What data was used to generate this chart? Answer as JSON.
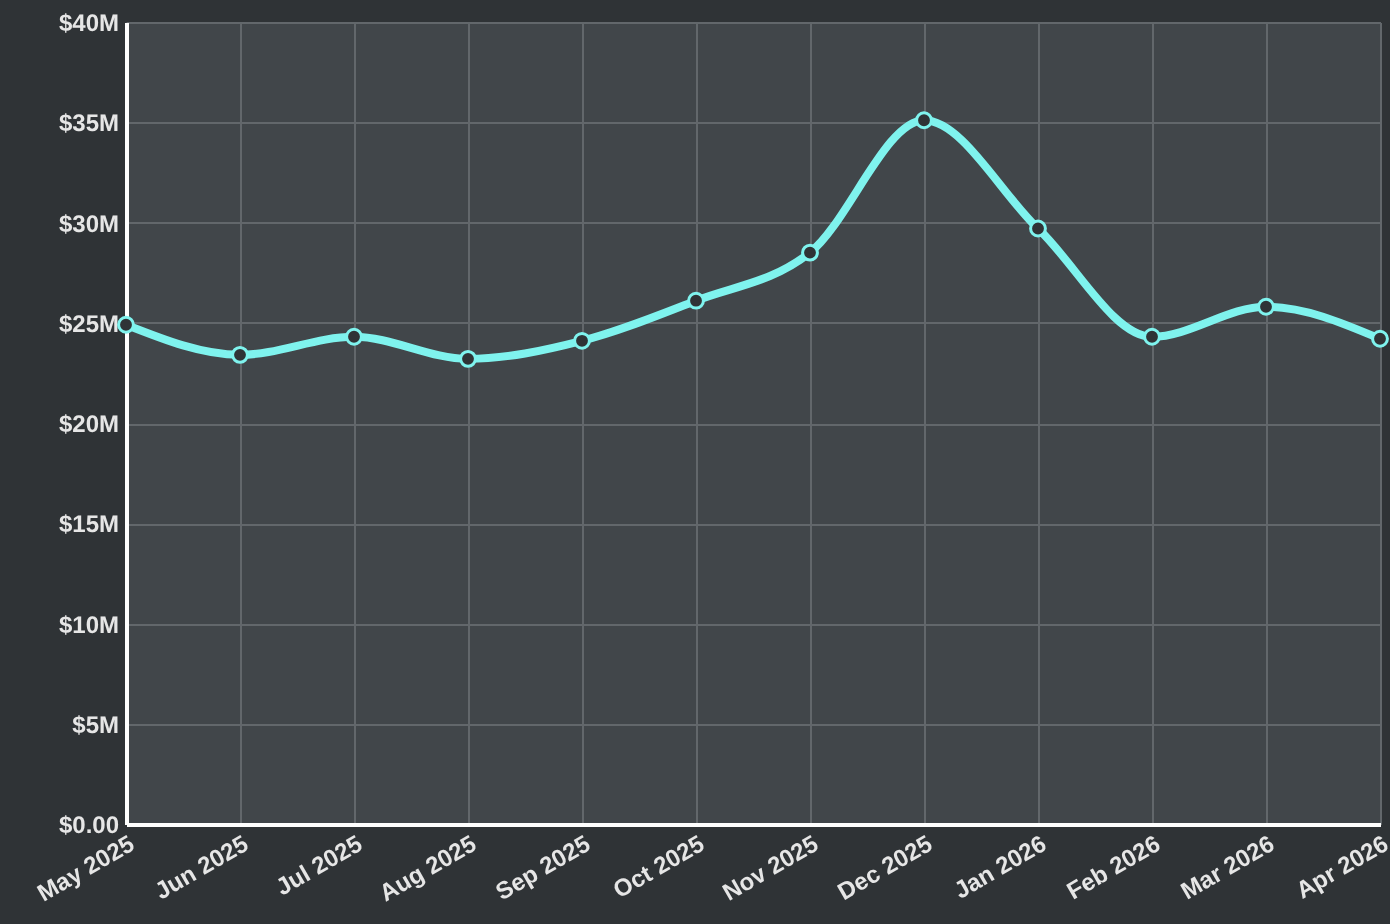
{
  "chart_data": {
    "type": "line",
    "categories": [
      "May 2025",
      "Jun 2025",
      "Jul 2025",
      "Aug 2025",
      "Sep 2025",
      "Oct 2025",
      "Nov 2025",
      "Dec 2025",
      "Jan 2026",
      "Feb 2026",
      "Mar 2026",
      "Apr 2026"
    ],
    "series": [
      {
        "color": "#7ff3ee",
        "values": [
          24.9,
          23.4,
          24.3,
          23.2,
          24.1,
          26.1,
          28.5,
          35.1,
          29.7,
          24.3,
          25.8,
          24.2
        ]
      }
    ],
    "ylim": [
      0,
      40
    ],
    "yticks": [
      {
        "value": 0,
        "label": "$0.00"
      },
      {
        "value": 5,
        "label": "$5M"
      },
      {
        "value": 10,
        "label": "$10M"
      },
      {
        "value": 15,
        "label": "$15M"
      },
      {
        "value": 20,
        "label": "$20M"
      },
      {
        "value": 25,
        "label": "$25M"
      },
      {
        "value": 30,
        "label": "$30M"
      },
      {
        "value": 35,
        "label": "$35M"
      },
      {
        "value": 40,
        "label": "$40M"
      }
    ],
    "grid": true,
    "marker": "circle",
    "line_style": "solid"
  }
}
